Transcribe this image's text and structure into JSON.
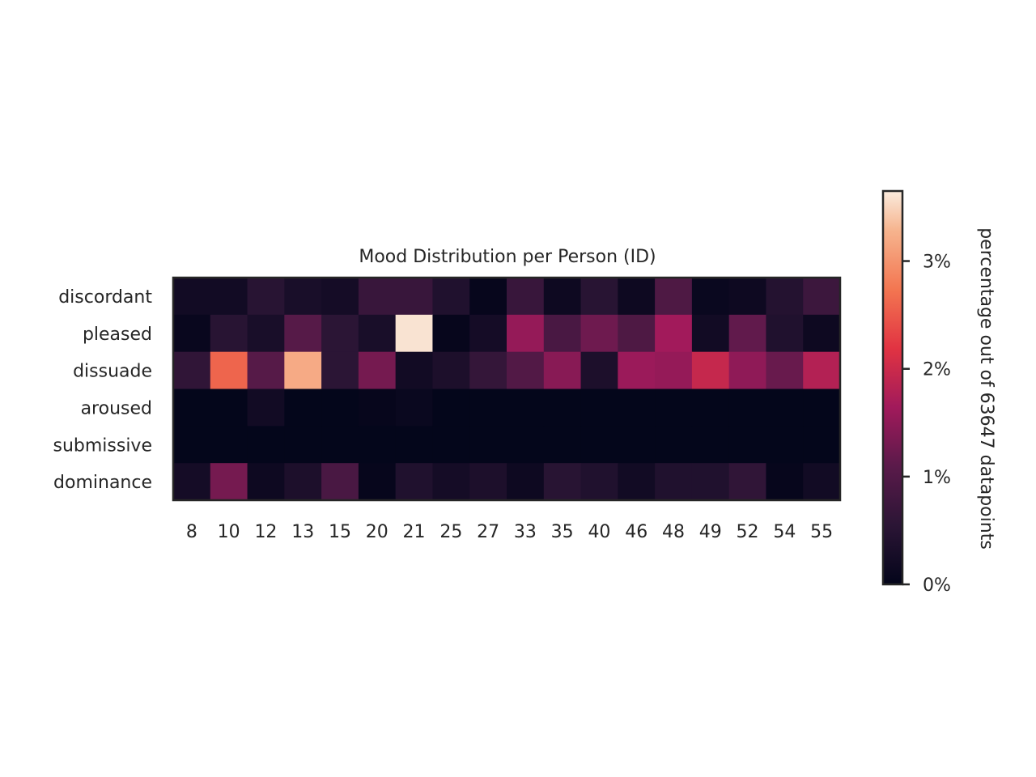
{
  "chart_data": {
    "type": "heatmap",
    "title": "Mood Distribution per Person (ID)",
    "xlabel": "",
    "ylabel": "",
    "x": [
      "8",
      "10",
      "12",
      "13",
      "15",
      "20",
      "21",
      "25",
      "27",
      "33",
      "35",
      "40",
      "46",
      "48",
      "49",
      "52",
      "54",
      "55"
    ],
    "y": [
      "discordant",
      "pleased",
      "dissuade",
      "aroused",
      "submissive",
      "dominance"
    ],
    "values": [
      [
        0.2,
        0.2,
        0.5,
        0.3,
        0.25,
        0.7,
        0.7,
        0.4,
        0.05,
        0.7,
        0.15,
        0.5,
        0.15,
        0.95,
        0.1,
        0.15,
        0.45,
        0.75
      ],
      [
        0.08,
        0.5,
        0.3,
        1.05,
        0.55,
        0.3,
        3.6,
        0.05,
        0.25,
        1.55,
        0.9,
        1.25,
        0.95,
        1.65,
        0.2,
        1.15,
        0.4,
        0.15
      ],
      [
        0.6,
        2.6,
        1.05,
        3.2,
        0.55,
        1.3,
        0.2,
        0.35,
        0.65,
        1.0,
        1.45,
        0.35,
        1.6,
        1.55,
        1.95,
        1.5,
        1.2,
        1.8
      ],
      [
        0.02,
        0.02,
        0.2,
        0.02,
        0.02,
        0.05,
        0.1,
        0.02,
        0.02,
        0.02,
        0.02,
        0.02,
        0.02,
        0.02,
        0.02,
        0.02,
        0.02,
        0.02
      ],
      [
        0.02,
        0.02,
        0.02,
        0.02,
        0.02,
        0.02,
        0.02,
        0.02,
        0.02,
        0.02,
        0.02,
        0.02,
        0.02,
        0.02,
        0.02,
        0.02,
        0.02,
        0.02
      ],
      [
        0.25,
        1.3,
        0.15,
        0.35,
        0.9,
        0.05,
        0.4,
        0.25,
        0.35,
        0.15,
        0.5,
        0.4,
        0.2,
        0.4,
        0.4,
        0.6,
        0.05,
        0.2
      ]
    ],
    "colorbar": {
      "label": "percentage out of 63647 datapoints",
      "ticks": [
        0,
        1,
        2,
        3
      ],
      "tick_labels": [
        "0%",
        "1%",
        "2%",
        "3%"
      ],
      "range": [
        0,
        3.65
      ]
    },
    "colormap": "rocket",
    "grid": false
  }
}
